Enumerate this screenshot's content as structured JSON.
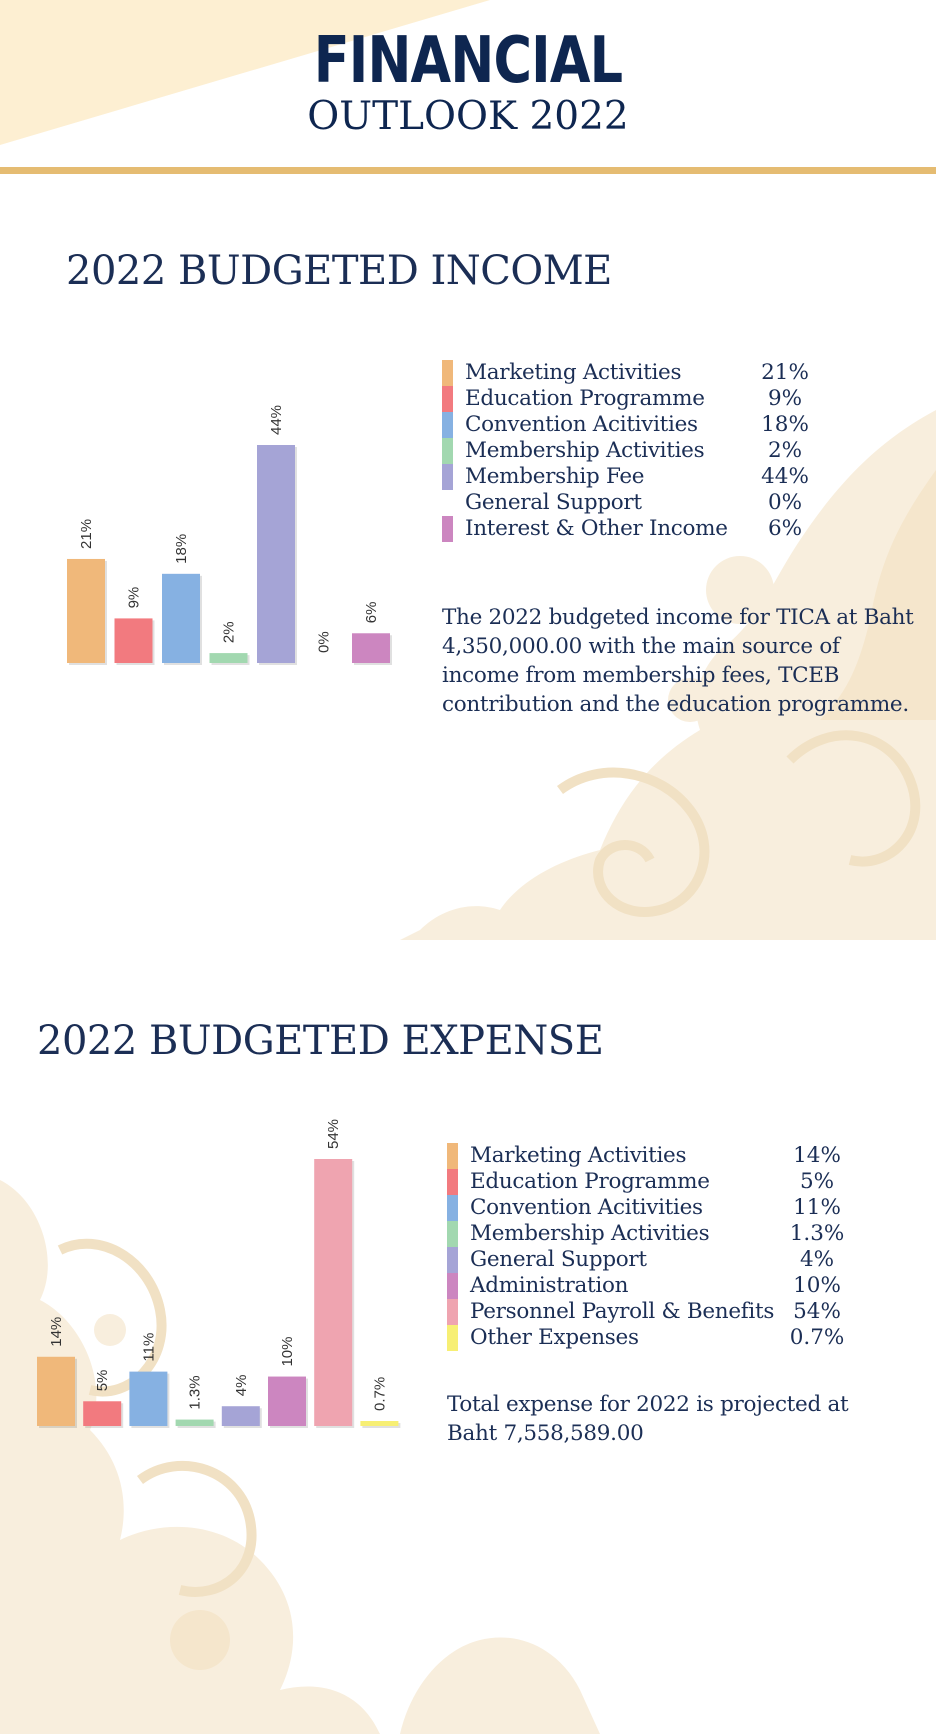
{
  "header": {
    "title": "FINANCIAL",
    "subtitle": "OUTLOOK 2022"
  },
  "colors": {
    "navy": "#1b2e55",
    "gold_rule": "#e5bc72",
    "cream_wedge": "#fdefd2",
    "pattern": "#f8eedd"
  },
  "income": {
    "title": "2022 BUDGETED INCOME",
    "legend": [
      {
        "label": "Marketing Activities",
        "value": "21%",
        "color": "#f0b87a"
      },
      {
        "label": "Education Programme",
        "value": "9%",
        "color": "#f27a7f"
      },
      {
        "label": "Convention Acitivities",
        "value": "18%",
        "color": "#86b1e2"
      },
      {
        "label": "Membership Activities",
        "value": "2%",
        "color": "#a2d8b0"
      },
      {
        "label": "Membership Fee",
        "value": "44%",
        "color": "#a5a4d6"
      },
      {
        "label": "General Support",
        "value": "0%",
        "color": ""
      },
      {
        "label": "Interest & Other Income",
        "value": "6%",
        "color": "#cc86c0"
      }
    ],
    "note": "The 2022 budgeted income for TICA at Baht 4,350,000.00 with the main source of income from membership fees, TCEB contribution and the education programme."
  },
  "expense": {
    "title": "2022 BUDGETED EXPENSE",
    "legend": [
      {
        "label": "Marketing Activities",
        "value": "14%",
        "color": "#f0b87a"
      },
      {
        "label": "Education Programme",
        "value": "5%",
        "color": "#f27a7f"
      },
      {
        "label": "Convention Acitivities",
        "value": "11%",
        "color": "#86b1e2"
      },
      {
        "label": "Membership Activities",
        "value": "1.3%",
        "color": "#a2d8b0"
      },
      {
        "label": "General Support",
        "value": "4%",
        "color": "#a5a4d6"
      },
      {
        "label": "Administration",
        "value": "10%",
        "color": "#cc86c0"
      },
      {
        "label": "Personnel Payroll & Benefits",
        "value": "54%",
        "color": "#efa4b0"
      },
      {
        "label": "Other Expenses",
        "value": "0.7%",
        "color": "#f7ef74"
      }
    ],
    "note": "Total expense for 2022 is projected at Baht 7,558,589.00"
  },
  "chart_data": [
    {
      "type": "bar",
      "title": "2022 BUDGETED INCOME",
      "categories": [
        "Marketing Activities",
        "Education Programme",
        "Convention Acitivities",
        "Membership Activities",
        "Membership Fee",
        "General Support",
        "Interest & Other Income"
      ],
      "values": [
        21,
        9,
        18,
        2,
        44,
        0,
        6
      ],
      "data_labels": [
        "21%",
        "9%",
        "18%",
        "2%",
        "44%",
        "0%",
        "6%"
      ],
      "colors": [
        "#f0b87a",
        "#f27a7f",
        "#86b1e2",
        "#a2d8b0",
        "#a5a4d6",
        "#d9d9d9",
        "#cc86c0"
      ],
      "ylim": [
        0,
        44
      ],
      "grid": false,
      "legend": "right"
    },
    {
      "type": "bar",
      "title": "2022 BUDGETED EXPENSE",
      "categories": [
        "Marketing Activities",
        "Education Programme",
        "Convention Acitivities",
        "Membership Activities",
        "General Support",
        "Administration",
        "Personnel Payroll & Benefits",
        "Other Expenses"
      ],
      "values": [
        14,
        5,
        11,
        1.3,
        4,
        10,
        54,
        0.7
      ],
      "data_labels": [
        "14%",
        "5%",
        "11%",
        "1.3%",
        "4%",
        "10%",
        "54%",
        "0.7%"
      ],
      "colors": [
        "#f0b87a",
        "#f27a7f",
        "#86b1e2",
        "#a2d8b0",
        "#a5a4d6",
        "#cc86c0",
        "#efa4b0",
        "#f7ef74"
      ],
      "ylim": [
        0,
        54
      ],
      "grid": false,
      "legend": "right"
    }
  ]
}
